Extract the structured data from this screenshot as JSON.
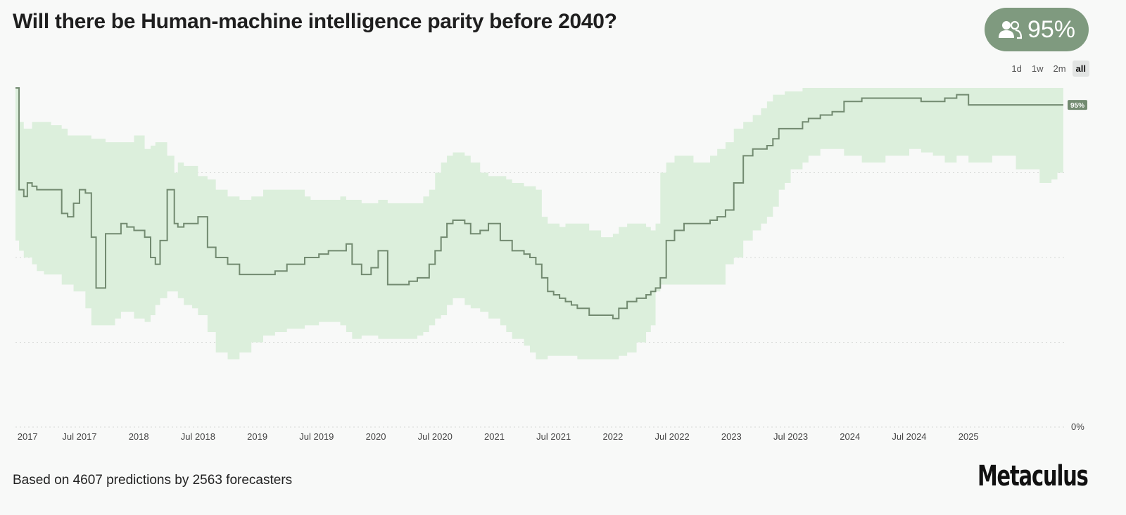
{
  "title": "Will there be Human-machine intelligence parity before 2040?",
  "badge": {
    "value": "95%",
    "icon": "people-icon",
    "color": "#7f9a7f"
  },
  "range_tabs": [
    {
      "label": "1d",
      "active": false
    },
    {
      "label": "1w",
      "active": false
    },
    {
      "label": "2m",
      "active": false
    },
    {
      "label": "all",
      "active": true
    }
  ],
  "footer": {
    "text": "Based on 4607 predictions by 2563 forecasters"
  },
  "logo": {
    "text": "Metaculus"
  },
  "colors": {
    "line": "#728a70",
    "band": "#dcefdc",
    "grid": "#d6d9d6"
  },
  "chart_data": {
    "type": "line",
    "x_tick_labels": [
      "2017",
      "Jul 2017",
      "2018",
      "Jul 2018",
      "2019",
      "Jul 2019",
      "2020",
      "Jul 2020",
      "2021",
      "Jul 2021",
      "2022",
      "Jul 2022",
      "2023",
      "Jul 2023",
      "2024",
      "Jul 2024",
      "2025"
    ],
    "y_tick_labels": [
      "0%"
    ],
    "current_label": "95%",
    "ylim": [
      0,
      100
    ],
    "xlim": [
      2016.96,
      2025.83
    ],
    "x": [
      2016.96,
      2016.99,
      2017.03,
      2017.06,
      2017.1,
      2017.14,
      2017.2,
      2017.26,
      2017.35,
      2017.4,
      2017.45,
      2017.5,
      2017.55,
      2017.6,
      2017.64,
      2017.72,
      2017.8,
      2017.85,
      2017.9,
      2017.96,
      2018.05,
      2018.1,
      2018.14,
      2018.18,
      2018.24,
      2018.3,
      2018.33,
      2018.38,
      2018.45,
      2018.5,
      2018.58,
      2018.65,
      2018.75,
      2018.85,
      2018.95,
      2019.05,
      2019.15,
      2019.25,
      2019.35,
      2019.4,
      2019.45,
      2019.52,
      2019.6,
      2019.7,
      2019.75,
      2019.8,
      2019.88,
      2019.96,
      2020.02,
      2020.1,
      2020.2,
      2020.28,
      2020.35,
      2020.4,
      2020.45,
      2020.5,
      2020.55,
      2020.6,
      2020.65,
      2020.7,
      2020.75,
      2020.8,
      2020.88,
      2020.95,
      2021.05,
      2021.1,
      2021.15,
      2021.25,
      2021.3,
      2021.35,
      2021.4,
      2021.45,
      2021.5,
      2021.55,
      2021.6,
      2021.65,
      2021.7,
      2021.8,
      2021.9,
      2022.0,
      2022.05,
      2022.12,
      2022.2,
      2022.28,
      2022.32,
      2022.36,
      2022.4,
      2022.45,
      2022.52,
      2022.6,
      2022.68,
      2022.75,
      2022.82,
      2022.88,
      2022.95,
      2023.02,
      2023.1,
      2023.18,
      2023.25,
      2023.3,
      2023.35,
      2023.4,
      2023.45,
      2023.5,
      2023.6,
      2023.65,
      2023.7,
      2023.75,
      2023.85,
      2023.95,
      2024.1,
      2024.3,
      2024.5,
      2024.6,
      2024.7,
      2024.8,
      2024.9,
      2025.0,
      2025.2,
      2025.4,
      2025.6,
      2025.7,
      2025.75,
      2025.8
    ],
    "series": [
      {
        "values": [
          100,
          70,
          68,
          72,
          71,
          70,
          70,
          70,
          63,
          62,
          66,
          70,
          69,
          56,
          41,
          57,
          57,
          60,
          59,
          58,
          56,
          50,
          48,
          55,
          70,
          60,
          59,
          60,
          60,
          62,
          53,
          50,
          48,
          45,
          45,
          45,
          46,
          48,
          48,
          50,
          50,
          51,
          52,
          52,
          54,
          48,
          45,
          47,
          52,
          42,
          42,
          43,
          44,
          44,
          48,
          52,
          56,
          60,
          61,
          61,
          60,
          57,
          58,
          60,
          55,
          55,
          52,
          51,
          50,
          48,
          44,
          40,
          39,
          38,
          37,
          36,
          35,
          33,
          33,
          32,
          35,
          37,
          38,
          39,
          40,
          41,
          44,
          55,
          58,
          60,
          60,
          60,
          61,
          62,
          64,
          72,
          80,
          82,
          82,
          83,
          85,
          88,
          88,
          88,
          90,
          91,
          91,
          92,
          93,
          96,
          97,
          97,
          97,
          96,
          96,
          97,
          98,
          95,
          95,
          95,
          95,
          95,
          95,
          95
        ],
        "lower": [
          80,
          55,
          52,
          50,
          50,
          48,
          46,
          45,
          45,
          42,
          42,
          40,
          40,
          35,
          30,
          30,
          30,
          32,
          34,
          34,
          32,
          31,
          33,
          36,
          38,
          40,
          40,
          38,
          36,
          35,
          33,
          28,
          22,
          20,
          22,
          25,
          27,
          28,
          29,
          29,
          30,
          30,
          31,
          31,
          30,
          28,
          26,
          27,
          27,
          26,
          26,
          26,
          26,
          27,
          28,
          30,
          32,
          33,
          36,
          38,
          38,
          36,
          35,
          34,
          32,
          30,
          28,
          26,
          24,
          22,
          20,
          20,
          21,
          21,
          21,
          21,
          21,
          20,
          20,
          20,
          20,
          21,
          22,
          25,
          28,
          30,
          40,
          42,
          42,
          42,
          42,
          42,
          42,
          42,
          42,
          48,
          50,
          55,
          58,
          60,
          62,
          65,
          70,
          72,
          76,
          78,
          80,
          80,
          82,
          82,
          80,
          78,
          80,
          82,
          81,
          80,
          78,
          80,
          78,
          80,
          76,
          72,
          73,
          75
        ],
        "upper": [
          100,
          90,
          88,
          88,
          90,
          90,
          90,
          89,
          88,
          86,
          86,
          86,
          86,
          85,
          85,
          84,
          84,
          84,
          84,
          86,
          82,
          83,
          84,
          84,
          80,
          75,
          78,
          77,
          77,
          74,
          73,
          70,
          68,
          67,
          68,
          70,
          70,
          70,
          70,
          68,
          67,
          67,
          67,
          68,
          67,
          67,
          66,
          66,
          67,
          66,
          66,
          66,
          66,
          68,
          70,
          75,
          78,
          80,
          81,
          81,
          80,
          78,
          75,
          74,
          74,
          73,
          72,
          71,
          71,
          70,
          62,
          60,
          60,
          59,
          60,
          60,
          60,
          58,
          56,
          57,
          59,
          60,
          60,
          59,
          58,
          60,
          75,
          78,
          80,
          80,
          78,
          78,
          80,
          82,
          84,
          88,
          90,
          92,
          94,
          96,
          98,
          98,
          99,
          99,
          100,
          100,
          100,
          100,
          100,
          100,
          100,
          100,
          100,
          100,
          100,
          100,
          100,
          100,
          100,
          100,
          100,
          100,
          100,
          100
        ]
      }
    ]
  }
}
